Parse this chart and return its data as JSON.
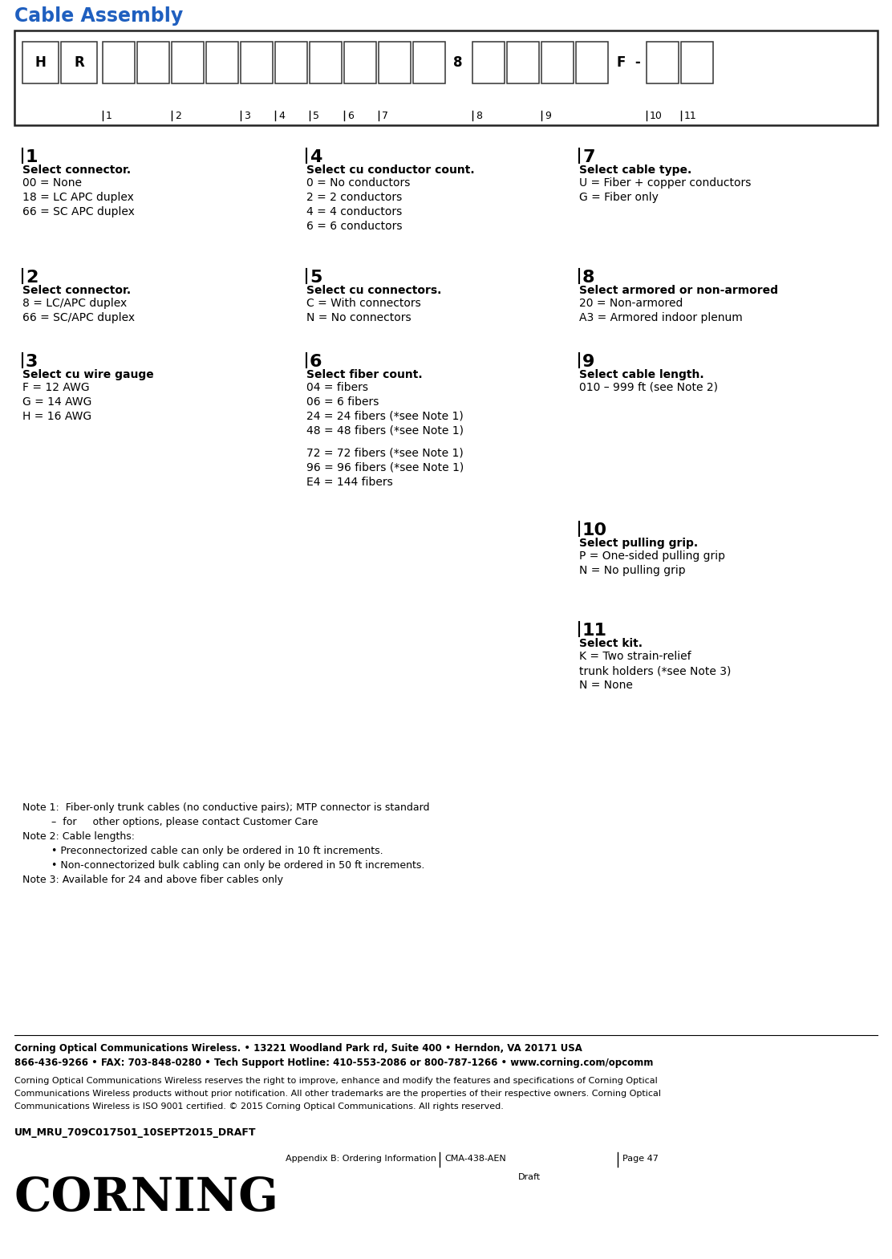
{
  "title": "Cable Assembly",
  "title_color": "#1F5FBF",
  "bg_color": "#FFFFFF",
  "sections": [
    {
      "num": "1",
      "col": 0,
      "header": "Select connector.",
      "items": [
        "00 = None",
        "18 = LC APC duplex",
        "66 = SC APC duplex"
      ]
    },
    {
      "num": "4",
      "col": 1,
      "header": "Select cu conductor count.",
      "items": [
        "0 = No conductors",
        "2 = 2 conductors",
        "4 = 4 conductors",
        "6 = 6 conductors"
      ]
    },
    {
      "num": "7",
      "col": 2,
      "header": "Select cable type.",
      "items": [
        "U = Fiber + copper conductors",
        "G = Fiber only"
      ]
    },
    {
      "num": "2",
      "col": 0,
      "header": "Select connector.",
      "items": [
        "8 = LC/APC duplex",
        "66 = SC/APC duplex"
      ]
    },
    {
      "num": "5",
      "col": 1,
      "header": "Select cu connectors.",
      "items": [
        "C = With connectors",
        "N = No connectors"
      ]
    },
    {
      "num": "8",
      "col": 2,
      "header": "Select armored or non-armored",
      "items": [
        "20 = Non-armored",
        "A3 = Armored indoor plenum"
      ]
    },
    {
      "num": "3",
      "col": 0,
      "header": "Select cu wire gauge",
      "items": [
        "F = 12 AWG",
        "G = 14 AWG",
        "H = 16 AWG"
      ]
    },
    {
      "num": "6",
      "col": 1,
      "header": "Select fiber count.",
      "items": [
        "04 = fibers",
        "06 = 6 fibers",
        "24 = 24 fibers (*see Note 1)",
        "48 = 48 fibers (*see Note 1)",
        "",
        "72 = 72 fibers (*see Note 1)",
        "96 = 96 fibers (*see Note 1)",
        "E4 = 144 fibers"
      ]
    },
    {
      "num": "9",
      "col": 2,
      "header": "Select cable length.",
      "items": [
        "010 – 999 ft (see Note 2)"
      ]
    },
    {
      "num": "10",
      "col": 2,
      "header": "Select pulling grip.",
      "items": [
        "P = One-sided pulling grip",
        "N = No pulling grip"
      ]
    },
    {
      "num": "11",
      "col": 2,
      "header": "Select kit.",
      "items": [
        "K = Two strain-relief",
        "trunk holders (*see Note 3)",
        "N = None"
      ]
    }
  ],
  "notes": [
    [
      "Note 1:  Fiber-only trunk cables (no conductive pairs); MTP connector is standard –  for     other options, please contact Customer Care",
      false
    ],
    [
      "–  for     other options, please contact Customer Care",
      false
    ],
    [
      "Note 2: Cable lengths:",
      false
    ],
    [
      "        • Preconnectorized cable can only be ordered in 10 ft increments.",
      false
    ],
    [
      "        • Non-connectorized bulk cabling can only be ordered in 50 ft increments.",
      false
    ],
    [
      "Note 3: Available for 24 and above fiber cables only",
      false
    ]
  ],
  "footer_bold1": "Corning Optical Communications Wireless. • 13221 Woodland Park rd, Suite 400 • Herndon, VA 20171 USA",
  "footer_bold2": "866-436-9266 • FAX: 703-848-0280 • Tech Support Hotline: 410-553-2086 or 800-787-1266 • www.corning.com/opcomm",
  "footer_normal": "Corning Optical Communications Wireless reserves the right to improve, enhance and modify the features and specifications of Corning Optical Communications Wireless products without prior notification. All other trademarks are the properties of their respective owners. Corning Optical Communications Wireless is ISO 9001 certified. © 2015 Corning Optical Communications. All rights reserved.",
  "footer_doc": "UM_MRU_709C017501_10SEPT2015_DRAFT",
  "footer_logo": "CORNING",
  "footer_appendix": "Appendix B: Ordering Information",
  "footer_doc_num": "CMA-438-AEN",
  "footer_page": "Page 47",
  "footer_draft": "Draft"
}
